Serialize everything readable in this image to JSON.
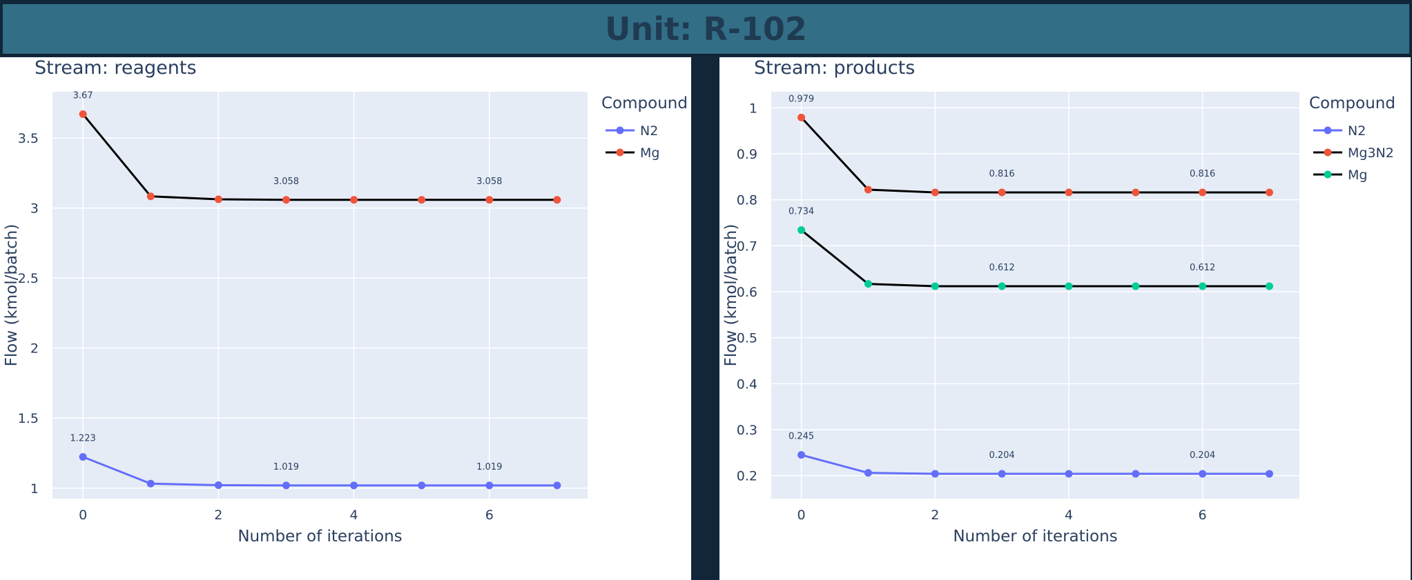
{
  "header": {
    "title": "Unit: R-102"
  },
  "chart_data": [
    {
      "type": "line",
      "title": "Stream: reagents",
      "xlabel": "Number of iterations",
      "ylabel": "Flow (kmol/batch)",
      "legend_title": "Compound",
      "legend_position": "right",
      "grid": true,
      "x": [
        0,
        1,
        2,
        3,
        4,
        5,
        6,
        7
      ],
      "xticks": [
        0,
        2,
        4,
        6
      ],
      "xlim": [
        -0.45,
        7.45
      ],
      "yticks": [
        1,
        1.5,
        2,
        2.5,
        3,
        3.5
      ],
      "ylim": [
        0.925,
        3.83
      ],
      "series": [
        {
          "name": "N2",
          "line_color": "#636efa",
          "marker_color": "#636efa",
          "values": [
            1.223,
            1.032,
            1.021,
            1.019,
            1.019,
            1.019,
            1.019,
            1.019
          ]
        },
        {
          "name": "Mg",
          "line_color": "#000000",
          "marker_color": "#ef553b",
          "values": [
            3.67,
            3.083,
            3.062,
            3.058,
            3.058,
            3.058,
            3.058,
            3.058
          ]
        }
      ],
      "annotations": [
        {
          "x": 0,
          "y": 3.67,
          "text": "3.67"
        },
        {
          "x": 3,
          "y": 3.058,
          "text": "3.058"
        },
        {
          "x": 6,
          "y": 3.058,
          "text": "3.058"
        },
        {
          "x": 0,
          "y": 1.223,
          "text": "1.223"
        },
        {
          "x": 3,
          "y": 1.019,
          "text": "1.019"
        },
        {
          "x": 6,
          "y": 1.019,
          "text": "1.019"
        }
      ]
    },
    {
      "type": "line",
      "title": "Stream: products",
      "xlabel": "Number of iterations",
      "ylabel": "Flow (kmol/batch)",
      "legend_title": "Compound",
      "legend_position": "right",
      "grid": true,
      "x": [
        0,
        1,
        2,
        3,
        4,
        5,
        6,
        7
      ],
      "xticks": [
        0,
        2,
        4,
        6
      ],
      "xlim": [
        -0.45,
        7.45
      ],
      "yticks": [
        0.2,
        0.3,
        0.4,
        0.5,
        0.6,
        0.7,
        0.8,
        0.9,
        1
      ],
      "ylim": [
        0.15,
        1.035
      ],
      "series": [
        {
          "name": "N2",
          "line_color": "#636efa",
          "marker_color": "#636efa",
          "values": [
            0.245,
            0.206,
            0.204,
            0.204,
            0.204,
            0.204,
            0.204,
            0.204
          ]
        },
        {
          "name": "Mg3N2",
          "line_color": "#000000",
          "marker_color": "#ef553b",
          "values": [
            0.979,
            0.822,
            0.816,
            0.816,
            0.816,
            0.816,
            0.816,
            0.816
          ]
        },
        {
          "name": "Mg",
          "line_color": "#000000",
          "marker_color": "#00cc96",
          "values": [
            0.734,
            0.617,
            0.612,
            0.612,
            0.612,
            0.612,
            0.612,
            0.612
          ]
        }
      ],
      "annotations": [
        {
          "x": 0,
          "y": 0.979,
          "text": "0.979"
        },
        {
          "x": 3,
          "y": 0.816,
          "text": "0.816"
        },
        {
          "x": 6,
          "y": 0.816,
          "text": "0.816"
        },
        {
          "x": 0,
          "y": 0.734,
          "text": "0.734"
        },
        {
          "x": 3,
          "y": 0.612,
          "text": "0.612"
        },
        {
          "x": 6,
          "y": 0.612,
          "text": "0.612"
        },
        {
          "x": 0,
          "y": 0.245,
          "text": "0.245"
        },
        {
          "x": 3,
          "y": 0.204,
          "text": "0.204"
        },
        {
          "x": 6,
          "y": 0.204,
          "text": "0.204"
        }
      ]
    }
  ]
}
